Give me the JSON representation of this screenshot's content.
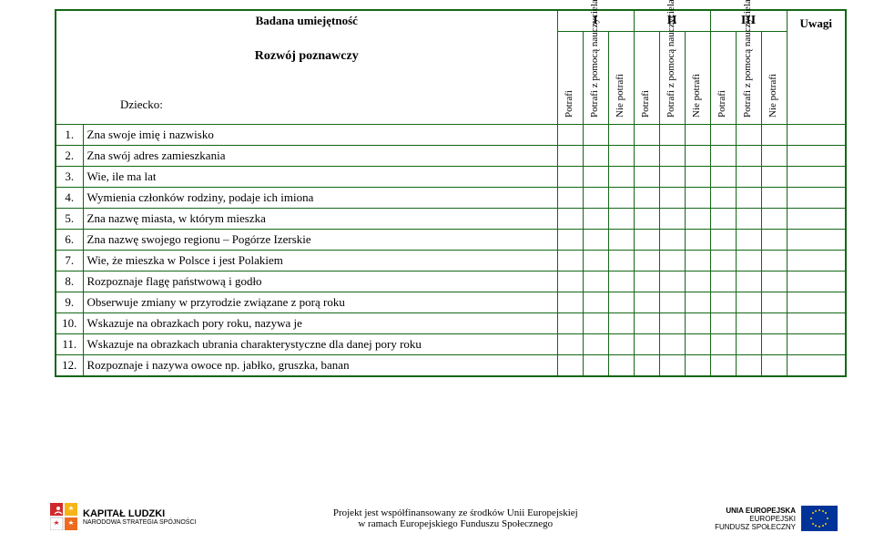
{
  "header": {
    "skill_title": "Badana umiejętność",
    "section_title": "Rozwój poznawczy",
    "dziecko_label": "Dziecko:",
    "periods": [
      "I",
      "II",
      "III"
    ],
    "uwagi": "Uwagi",
    "col_labels": {
      "potrafi": "Potrafi",
      "pomoc": "Potrafi z pomocą nauczyciela",
      "nie": "Nie potrafi"
    }
  },
  "rows": [
    {
      "n": "1.",
      "t": "Zna swoje imię i nazwisko"
    },
    {
      "n": "2.",
      "t": "Zna swój adres zamieszkania"
    },
    {
      "n": "3.",
      "t": "Wie, ile ma lat"
    },
    {
      "n": "4.",
      "t": "Wymienia członków rodziny, podaje ich imiona"
    },
    {
      "n": "5.",
      "t": "Zna nazwę miasta, w którym mieszka"
    },
    {
      "n": "6.",
      "t": "Zna nazwę swojego regionu – Pogórze Izerskie"
    },
    {
      "n": "7.",
      "t": "Wie, że mieszka w Polsce i jest Polakiem"
    },
    {
      "n": "8.",
      "t": "Rozpoznaje flagę państwową i godło"
    },
    {
      "n": "9.",
      "t": "Obserwuje zmiany w przyrodzie związane z porą roku"
    },
    {
      "n": "10.",
      "t": "Wskazuje na obrazkach pory roku, nazywa je"
    },
    {
      "n": "11.",
      "t": "Wskazuje na obrazkach ubrania charakterystyczne dla danej pory roku"
    },
    {
      "n": "12.",
      "t": "Rozpoznaje i nazywa owoce np. jabłko, gruszka, banan"
    }
  ],
  "footer": {
    "kl_line1": "KAPITAŁ LUDZKI",
    "kl_line2": "NARODOWA STRATEGIA SPÓJNOŚCI",
    "center_line1": "Projekt jest współfinansowany ze środków Unii Europejskiej",
    "center_line2": "w ramach Europejskiego Funduszu Społecznego",
    "eu_line1": "UNIA EUROPEJSKA",
    "eu_line2": "EUROPEJSKI",
    "eu_line3": "FUNDUSZ SPOŁECZNY"
  },
  "colors": {
    "border": "#146717",
    "eu_blue": "#003399",
    "eu_yellow": "#ffcc00",
    "kl_red": "#d12a2e",
    "kl_yellow": "#f7b417",
    "kl_orange": "#ec6b1f",
    "kl_white": "#ffffff"
  }
}
